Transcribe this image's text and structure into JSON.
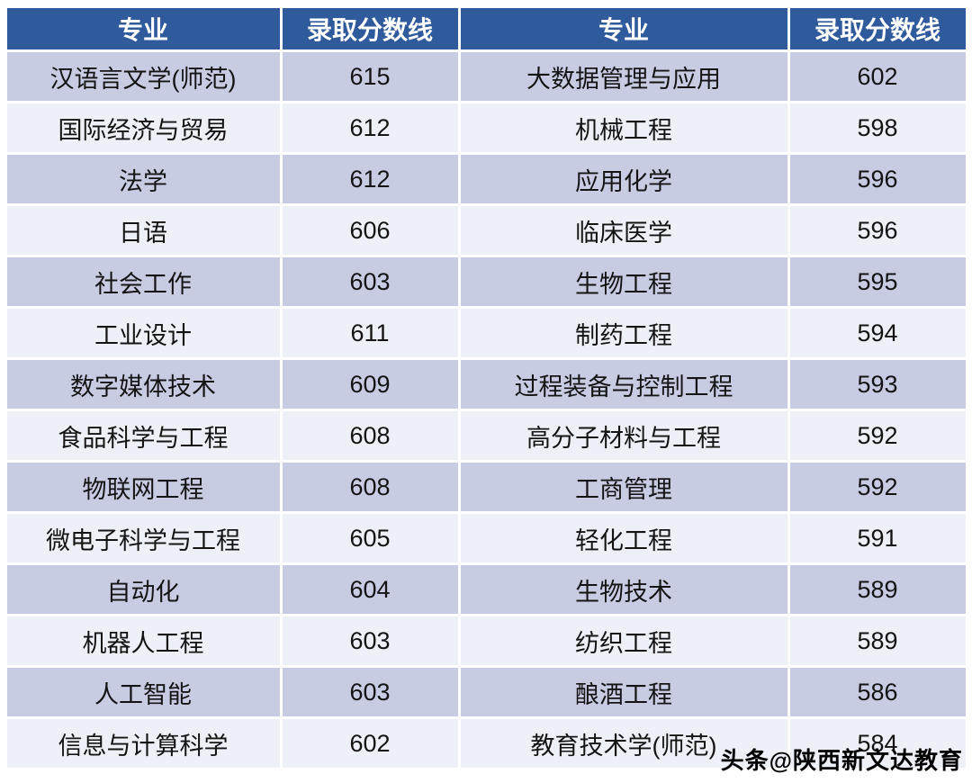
{
  "chart_data": {
    "type": "table",
    "title": "录取分数线",
    "columns": [
      "专业",
      "录取分数线",
      "专业",
      "录取分数线"
    ],
    "rows": [
      [
        "汉语言文学(师范)",
        "615",
        "大数据管理与应用",
        "602"
      ],
      [
        "国际经济与贸易",
        "612",
        "机械工程",
        "598"
      ],
      [
        "法学",
        "612",
        "应用化学",
        "596"
      ],
      [
        "日语",
        "606",
        "临床医学",
        "596"
      ],
      [
        "社会工作",
        "603",
        "生物工程",
        "595"
      ],
      [
        "工业设计",
        "611",
        "制药工程",
        "594"
      ],
      [
        "数字媒体技术",
        "609",
        "过程装备与控制工程",
        "593"
      ],
      [
        "食品科学与工程",
        "608",
        "高分子材料与工程",
        "592"
      ],
      [
        "物联网工程",
        "608",
        "工商管理",
        "592"
      ],
      [
        "微电子科学与工程",
        "605",
        "轻化工程",
        "591"
      ],
      [
        "自动化",
        "604",
        "生物技术",
        "589"
      ],
      [
        "机器人工程",
        "603",
        "纺织工程",
        "589"
      ],
      [
        "人工智能",
        "603",
        "酿酒工程",
        "586"
      ],
      [
        "信息与计算科学",
        "602",
        "教育技术学(师范)",
        "584"
      ]
    ]
  },
  "watermark": {
    "text": "头条@陕西新文达教育"
  },
  "colors": {
    "header_bg": "#2f5b9d",
    "header_text": "#ffffff",
    "row_odd": "#c8cce3",
    "row_even": "#eef0f7",
    "text": "#141414"
  }
}
